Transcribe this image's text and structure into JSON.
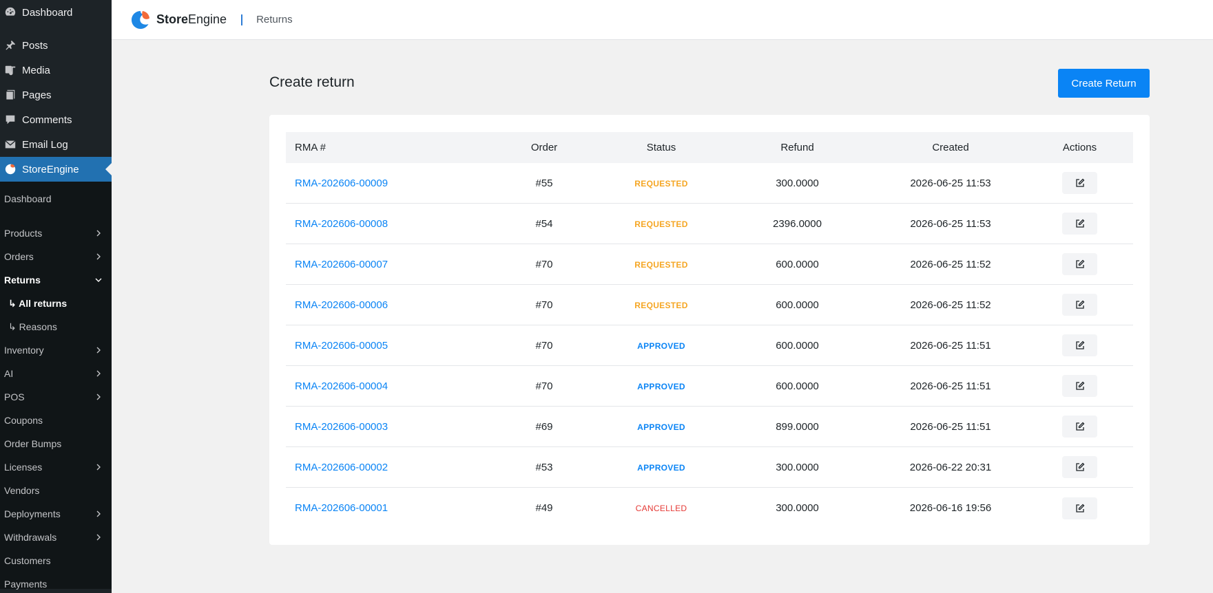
{
  "sidebar": {
    "wp_items": [
      {
        "label": "Dashboard",
        "icon": "dashboard-icon"
      },
      {
        "label": "Posts",
        "icon": "pin-icon"
      },
      {
        "label": "Media",
        "icon": "media-icon"
      },
      {
        "label": "Pages",
        "icon": "pages-icon"
      },
      {
        "label": "Comments",
        "icon": "comment-icon"
      },
      {
        "label": "Email Log",
        "icon": "email-icon"
      },
      {
        "label": "StoreEngine",
        "icon": "storeengine-icon"
      }
    ],
    "sub_items": [
      {
        "label": "Dashboard"
      },
      {
        "label": "Products"
      },
      {
        "label": "Orders"
      },
      {
        "label": "Returns"
      },
      {
        "label": "↳ All returns"
      },
      {
        "label": "↳ Reasons"
      },
      {
        "label": "Inventory"
      },
      {
        "label": "AI"
      },
      {
        "label": "POS"
      },
      {
        "label": "Coupons"
      },
      {
        "label": "Order Bumps"
      },
      {
        "label": "Licenses"
      },
      {
        "label": "Vendors"
      },
      {
        "label": "Deployments"
      },
      {
        "label": "Withdrawals"
      },
      {
        "label": "Customers"
      },
      {
        "label": "Payments"
      }
    ]
  },
  "header": {
    "brand_bold": "Store",
    "brand_rest": "Engine",
    "breadcrumb": "Returns"
  },
  "main": {
    "title": "Create return",
    "create_button": "Create Return"
  },
  "table": {
    "headers": {
      "rma": "RMA #",
      "order": "Order",
      "status": "Status",
      "refund": "Refund",
      "created": "Created",
      "actions": "Actions"
    },
    "rows": [
      {
        "rma": "RMA-202606-00009",
        "order": "#55",
        "status": "REQUESTED",
        "refund": "300.0000",
        "created": "2026-06-25 11:53"
      },
      {
        "rma": "RMA-202606-00008",
        "order": "#54",
        "status": "REQUESTED",
        "refund": "2396.0000",
        "created": "2026-06-25 11:53"
      },
      {
        "rma": "RMA-202606-00007",
        "order": "#70",
        "status": "REQUESTED",
        "refund": "600.0000",
        "created": "2026-06-25 11:52"
      },
      {
        "rma": "RMA-202606-00006",
        "order": "#70",
        "status": "REQUESTED",
        "refund": "600.0000",
        "created": "2026-06-25 11:52"
      },
      {
        "rma": "RMA-202606-00005",
        "order": "#70",
        "status": "APPROVED",
        "refund": "600.0000",
        "created": "2026-06-25 11:51"
      },
      {
        "rma": "RMA-202606-00004",
        "order": "#70",
        "status": "APPROVED",
        "refund": "600.0000",
        "created": "2026-06-25 11:51"
      },
      {
        "rma": "RMA-202606-00003",
        "order": "#69",
        "status": "APPROVED",
        "refund": "899.0000",
        "created": "2026-06-25 11:51"
      },
      {
        "rma": "RMA-202606-00002",
        "order": "#53",
        "status": "APPROVED",
        "refund": "300.0000",
        "created": "2026-06-22 20:31"
      },
      {
        "rma": "RMA-202606-00001",
        "order": "#49",
        "status": "CANCELLED",
        "refund": "300.0000",
        "created": "2026-06-16 19:56"
      }
    ]
  },
  "colors": {
    "accent": "#0a84f5",
    "sidebar_bg": "#1d2327",
    "status_requested": "#f5a623",
    "status_approved": "#0a84f5",
    "status_cancelled": "#e53935"
  }
}
